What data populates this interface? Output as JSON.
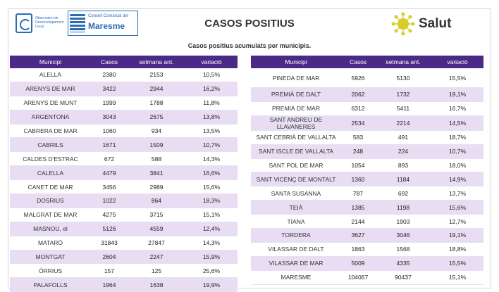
{
  "header": {
    "logo1_text": "Observatori de Desenvolupament Local",
    "logo2_small": "Consell Comarcal del",
    "logo2_big": "Maresme",
    "title": "CASOS POSITIUS",
    "salut": "Salut"
  },
  "subtitle": "Casos positius acumulats per municipis.",
  "columns": [
    "Municipi",
    "Casos",
    "setmana ant.",
    "variació"
  ],
  "left_rows": [
    {
      "m": "ALELLA",
      "c": "2380",
      "s": "2153",
      "v": "10,5%"
    },
    {
      "m": "ARENYS DE MAR",
      "c": "3422",
      "s": "2944",
      "v": "16,2%"
    },
    {
      "m": "ARENYS DE MUNT",
      "c": "1999",
      "s": "1788",
      "v": "11,8%"
    },
    {
      "m": "ARGENTONA",
      "c": "3043",
      "s": "2675",
      "v": "13,8%"
    },
    {
      "m": "CABRERA DE MAR",
      "c": "1060",
      "s": "934",
      "v": "13,5%"
    },
    {
      "m": "CABRILS",
      "c": "1671",
      "s": "1509",
      "v": "10,7%"
    },
    {
      "m": "CALDES D'ESTRAC",
      "c": "672",
      "s": "588",
      "v": "14,3%"
    },
    {
      "m": "CALELLA",
      "c": "4479",
      "s": "3841",
      "v": "16,6%"
    },
    {
      "m": "CANET DE MAR",
      "c": "3456",
      "s": "2989",
      "v": "15,6%"
    },
    {
      "m": "DOSRIUS",
      "c": "1022",
      "s": "864",
      "v": "18,3%"
    },
    {
      "m": "MALGRAT DE MAR",
      "c": "4275",
      "s": "3715",
      "v": "15,1%"
    },
    {
      "m": "MASNOU, el",
      "c": "5126",
      "s": "4559",
      "v": "12,4%"
    },
    {
      "m": "MATARÓ",
      "c": "31843",
      "s": "27847",
      "v": "14,3%"
    },
    {
      "m": "MONTGAT",
      "c": "2604",
      "s": "2247",
      "v": "15,9%"
    },
    {
      "m": "ÒRRIUS",
      "c": "157",
      "s": "125",
      "v": "25,6%"
    },
    {
      "m": "PALAFOLLS",
      "c": "1964",
      "s": "1638",
      "v": "19,9%"
    }
  ],
  "right_rows": [
    {
      "m": "PINEDA DE MAR",
      "c": "5926",
      "s": "5130",
      "v": "15,5%"
    },
    {
      "m": "PREMIÀ DE DALT",
      "c": "2062",
      "s": "1732",
      "v": "19,1%"
    },
    {
      "m": "PREMIÀ DE MAR",
      "c": "6312",
      "s": "5411",
      "v": "16,7%"
    },
    {
      "m": "SANT ANDREU DE LLAVANERES",
      "c": "2534",
      "s": "2214",
      "v": "14,5%"
    },
    {
      "m": "SANT CEBRIÀ DE VALLALTA",
      "c": "583",
      "s": "491",
      "v": "18,7%"
    },
    {
      "m": "SANT ISCLE DE VALLALTA",
      "c": "248",
      "s": "224",
      "v": "10,7%"
    },
    {
      "m": "SANT POL DE MAR",
      "c": "1054",
      "s": "893",
      "v": "18,0%"
    },
    {
      "m": "SANT VICENÇ DE MONTALT",
      "c": "1360",
      "s": "1184",
      "v": "14,9%"
    },
    {
      "m": "SANTA SUSANNA",
      "c": "787",
      "s": "692",
      "v": "13,7%"
    },
    {
      "m": "TEIÀ",
      "c": "1385",
      "s": "1198",
      "v": "15,6%"
    },
    {
      "m": "TIANA",
      "c": "2144",
      "s": "1903",
      "v": "12,7%"
    },
    {
      "m": "TORDERA",
      "c": "3627",
      "s": "3046",
      "v": "19,1%"
    },
    {
      "m": "VILASSAR DE DALT",
      "c": "1863",
      "s": "1568",
      "v": "18,8%"
    },
    {
      "m": "VILASSAR DE MAR",
      "c": "5009",
      "s": "4335",
      "v": "15,5%"
    },
    {
      "m": "MARESME",
      "c": "104067",
      "s": "90437",
      "v": "15,1%"
    }
  ],
  "colors": {
    "header_bg": "#4a2a86",
    "row_even": "#e8ddf3",
    "sun": "#d8cc2a"
  }
}
